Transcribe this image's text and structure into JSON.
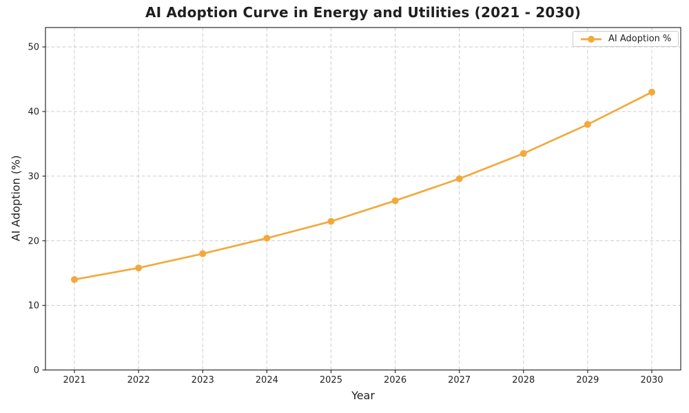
{
  "chart_data": {
    "type": "line",
    "title": "AI Adoption Curve in Energy and Utilities (2021 - 2030)",
    "xlabel": "Year",
    "ylabel": "AI Adoption (%)",
    "x": [
      "2021",
      "2022",
      "2023",
      "2024",
      "2025",
      "2026",
      "2027",
      "2028",
      "2029",
      "2030"
    ],
    "series": [
      {
        "name": "AI Adoption %",
        "values": [
          14.0,
          15.8,
          18.0,
          20.4,
          23.0,
          26.2,
          29.6,
          33.5,
          38.0,
          43.0
        ]
      }
    ],
    "yticks": [
      0,
      10,
      20,
      30,
      40,
      50
    ],
    "ylim": [
      0,
      53
    ],
    "grid": true,
    "grid_style": "dashed",
    "legend_position": "upper right",
    "line_color": "#F2A93C",
    "marker": "circle",
    "background": "#FFFFFF"
  }
}
